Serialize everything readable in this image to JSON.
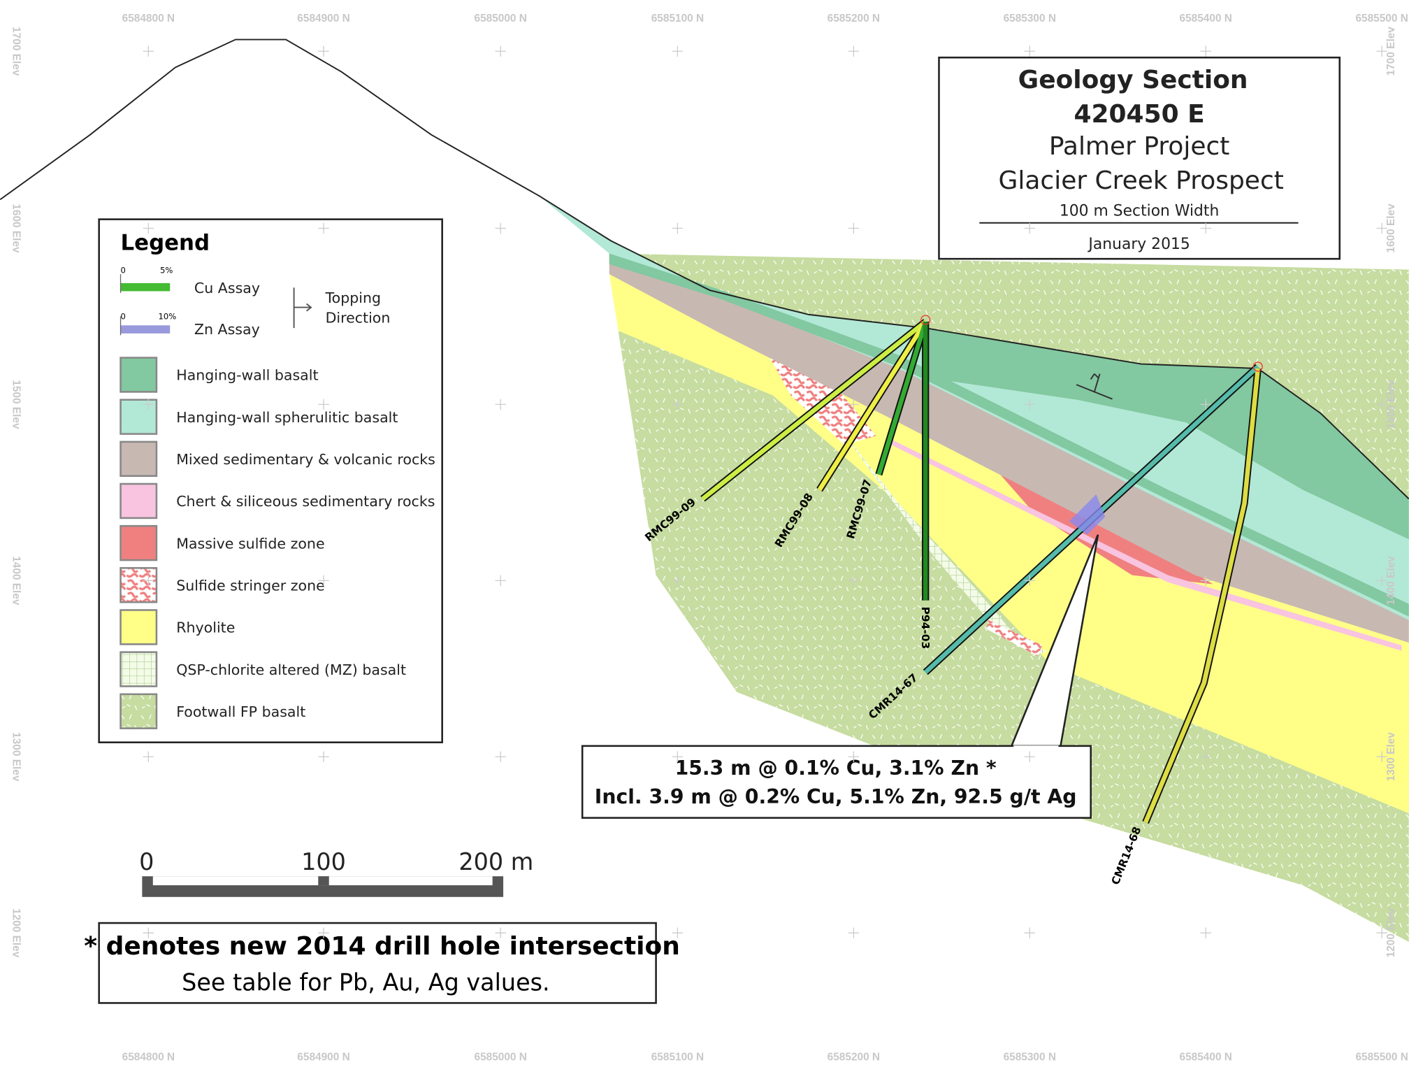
{
  "header": {
    "title": "Geology Section",
    "section": "420450 E",
    "project": "Palmer Project",
    "prospect": "Glacier Creek Prospect",
    "width": "100 m Section Width",
    "date": "January 2015"
  },
  "northings": [
    "6584800 N",
    "6584900 N",
    "6585000 N",
    "6585100 N",
    "6585200 N",
    "6585300 N",
    "6585400 N",
    "6585500 N"
  ],
  "elevations": [
    "1700 Elev",
    "1600 Elev",
    "1500 Elev",
    "1400 Elev",
    "1300 Elev",
    "1200 Elev"
  ],
  "legend": {
    "title": "Legend",
    "cu_min": "0",
    "cu_max": "5%",
    "cu_label": "Cu Assay",
    "zn_min": "0",
    "zn_max": "10%",
    "zn_label": "Zn Assay",
    "topping": [
      "Topping",
      "Direction"
    ],
    "units": [
      "Hanging-wall basalt",
      "Hanging-wall spherulitic basalt",
      "Mixed sedimentary & volcanic rocks",
      "Chert & siliceous sedimentary rocks",
      "Massive sulfide zone",
      "Sulfide stringer zone",
      "Rhyolite",
      "QSP-chlorite altered (MZ) basalt",
      "Footwall FP basalt"
    ]
  },
  "drill_holes": [
    "RMC99-09",
    "RMC99-08",
    "RMC99-07",
    "P94-03",
    "CMR14-67",
    "CMR14-68"
  ],
  "intersection": [
    "15.3 m @ 0.1% Cu, 3.1% Zn *",
    "Incl. 3.9 m @ 0.2% Cu, 5.1% Zn, 92.5 g/t Ag"
  ],
  "scale_bar": [
    "0",
    "100",
    "200 m"
  ],
  "footnote": [
    "* denotes new 2014 drill hole intersection",
    "See table for Pb, Au, Ag values."
  ]
}
